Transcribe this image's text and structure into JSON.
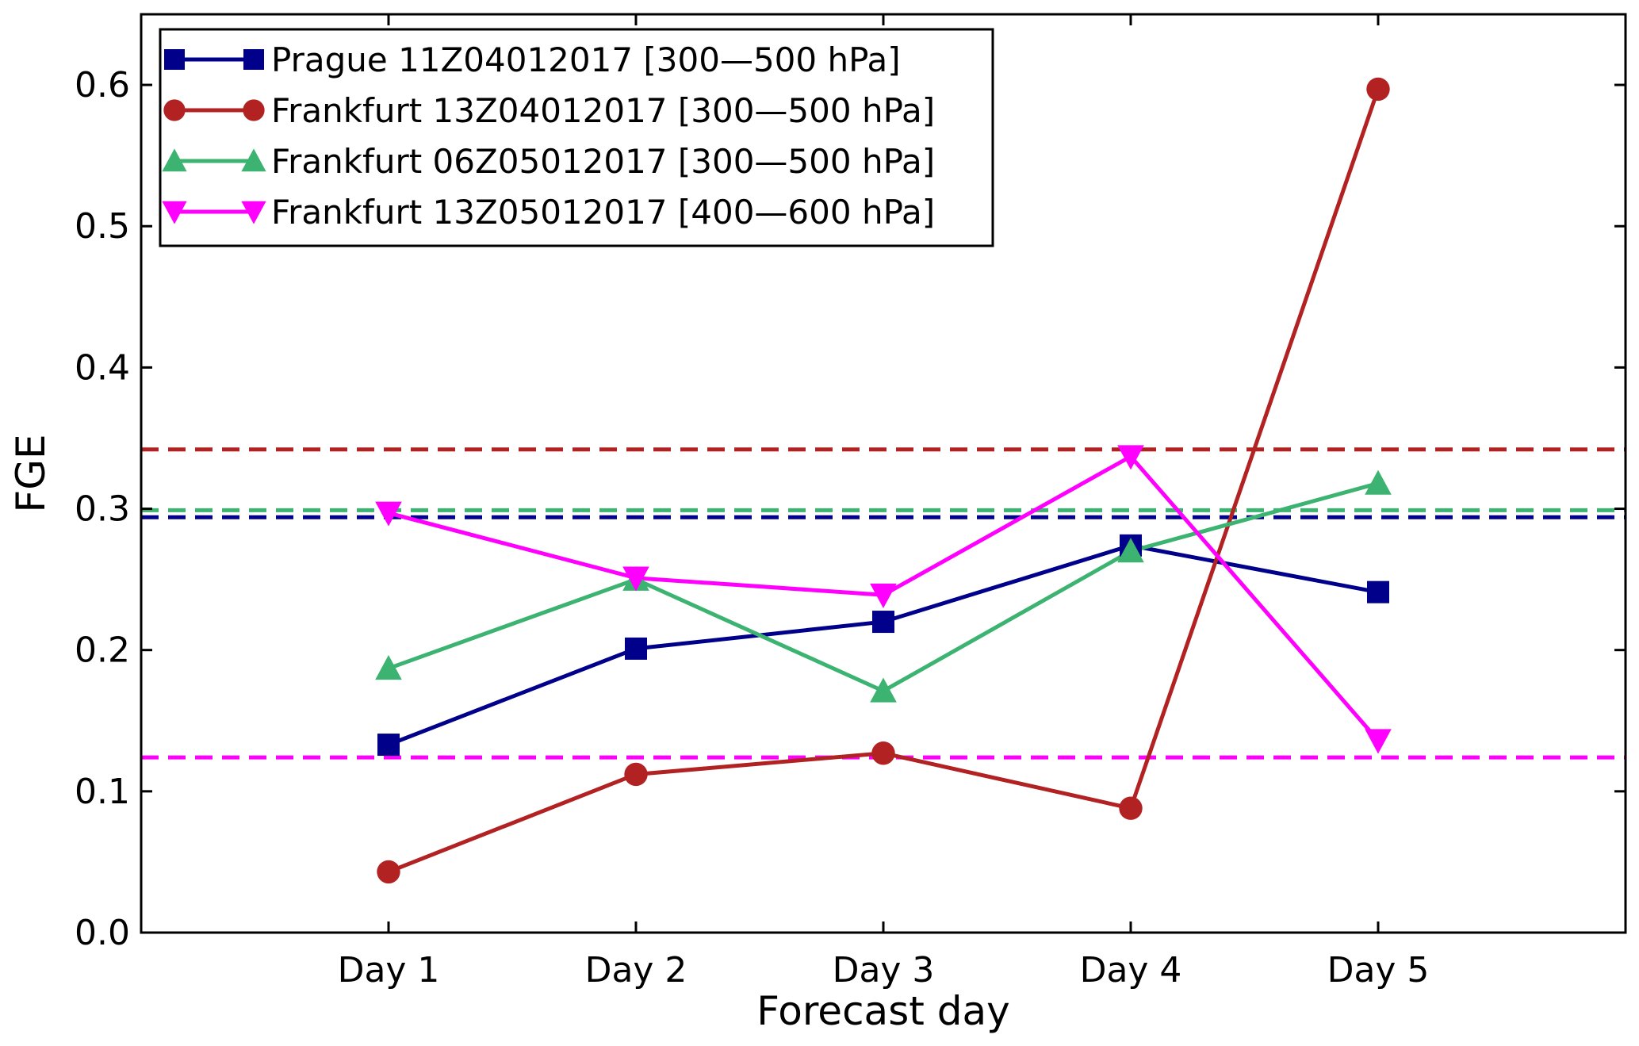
{
  "chart_data": {
    "type": "line",
    "title": "",
    "xlabel": "Forecast day",
    "ylabel": "FGE",
    "categories": [
      "Day 1",
      "Day 2",
      "Day 3",
      "Day 4",
      "Day 5"
    ],
    "xlim": [
      0,
      6
    ],
    "ylim": [
      0.0,
      0.65
    ],
    "yticks": [
      0.0,
      0.1,
      0.2,
      0.3,
      0.4,
      0.5,
      0.6
    ],
    "ytick_labels": [
      "0.0",
      "0.1",
      "0.2",
      "0.3",
      "0.4",
      "0.5",
      "0.6"
    ],
    "grid": false,
    "legend_position": "top-left",
    "series": [
      {
        "name": "Prague 11Z04012017 [300—500 hPa]",
        "color": "#00008b",
        "marker": "square",
        "values": [
          0.133,
          0.201,
          0.22,
          0.274,
          0.241
        ],
        "reference": 0.294
      },
      {
        "name": "Frankfurt 13Z04012017 [300—500 hPa]",
        "color": "#b22222",
        "marker": "circle",
        "values": [
          0.043,
          0.112,
          0.127,
          0.088,
          0.597
        ],
        "reference": 0.342
      },
      {
        "name": "Frankfurt 06Z05012017 [300—500 hPa]",
        "color": "#3cb371",
        "marker": "triangle-up",
        "values": [
          0.187,
          0.25,
          0.171,
          0.27,
          0.318
        ],
        "reference": 0.299
      },
      {
        "name": "Frankfurt 13Z05012017 [400—600 hPa]",
        "color": "#ff00ff",
        "marker": "triangle-down",
        "values": [
          0.297,
          0.251,
          0.239,
          0.337,
          0.136
        ],
        "reference": 0.124
      }
    ]
  }
}
